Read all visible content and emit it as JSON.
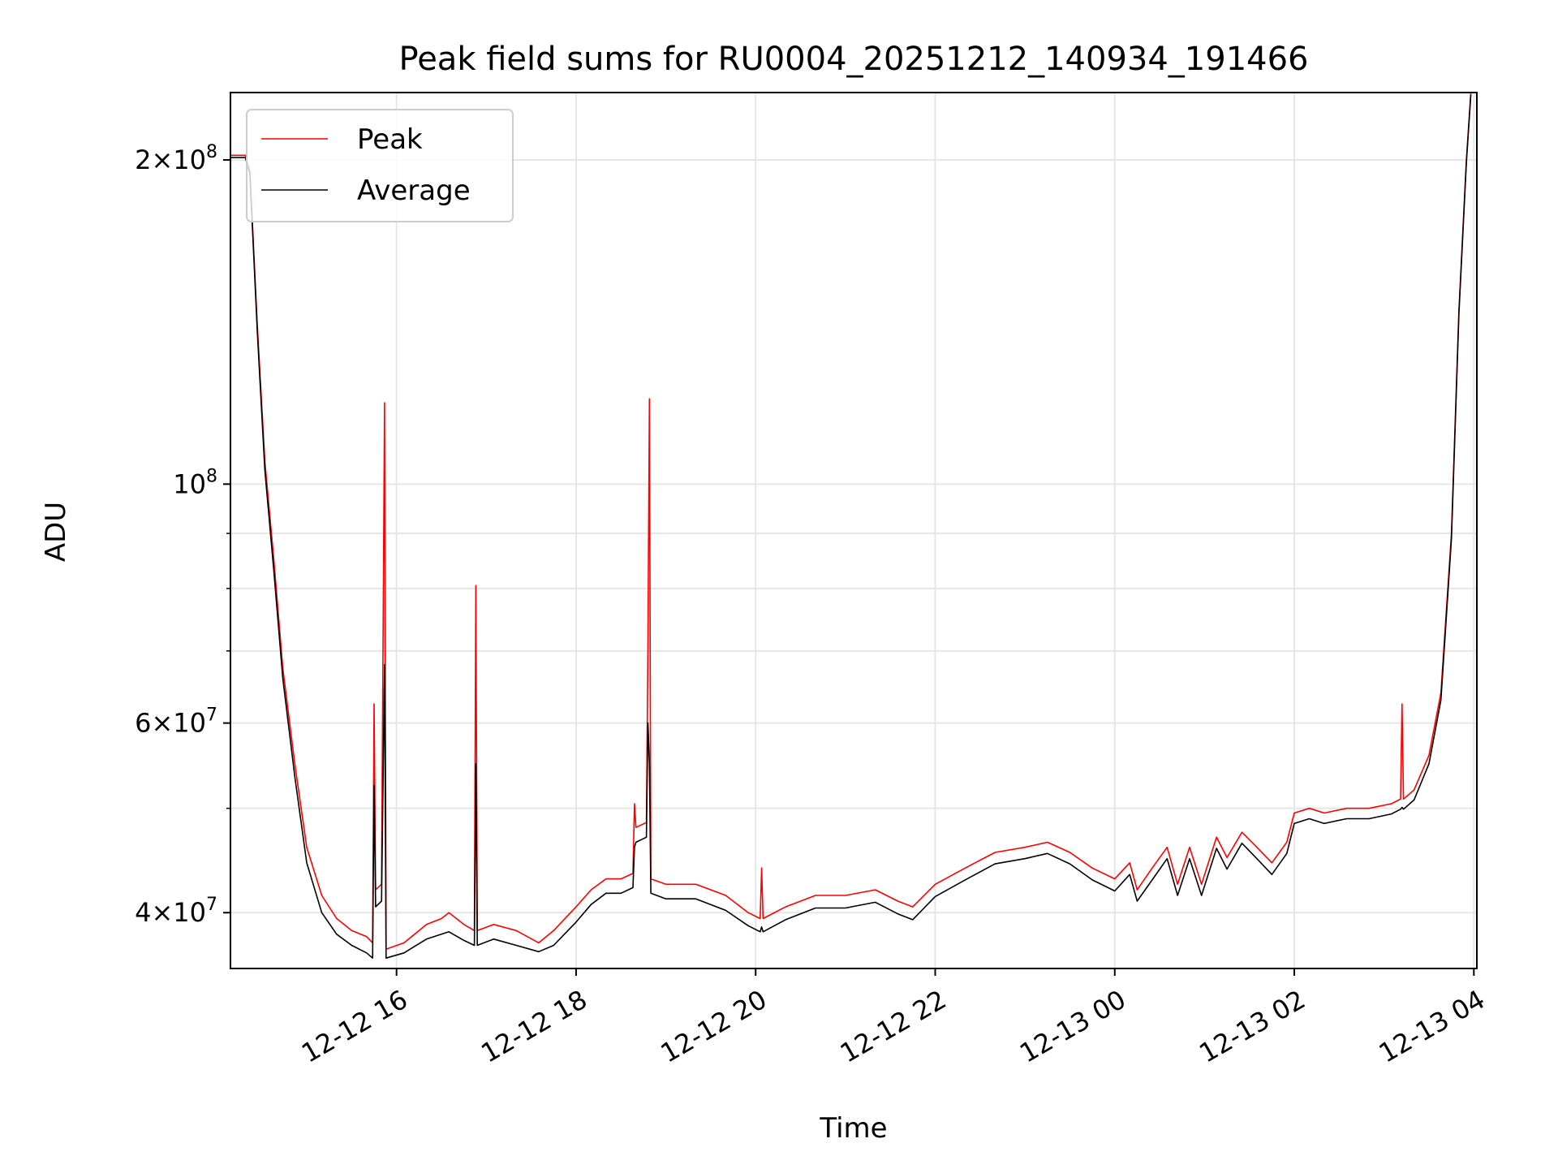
{
  "chart_data": {
    "type": "line",
    "title": "Peak field sums for RU0004_20251212_140934_191466",
    "xlabel": "Time",
    "ylabel": "ADU",
    "yscale": "log",
    "grid": true,
    "legend_position": "top-left",
    "xlim": [
      "2025-12-12 14:09",
      "2025-12-13 04:02"
    ],
    "ylim": [
      35500000,
      231000000
    ],
    "x_ticks": [
      {
        "value": "2025-12-12 16:00",
        "label": "12-12 16"
      },
      {
        "value": "2025-12-12 18:00",
        "label": "12-12 18"
      },
      {
        "value": "2025-12-12 20:00",
        "label": "12-12 20"
      },
      {
        "value": "2025-12-12 22:00",
        "label": "12-12 22"
      },
      {
        "value": "2025-12-13 00:00",
        "label": "12-13 00"
      },
      {
        "value": "2025-12-13 02:00",
        "label": "12-13 02"
      },
      {
        "value": "2025-12-13 04:00",
        "label": "12-13 04"
      }
    ],
    "y_ticks_major": [
      {
        "value": 40000000,
        "base": "4×10",
        "exp": "7"
      },
      {
        "value": 60000000,
        "base": "6×10",
        "exp": "7"
      },
      {
        "value": 100000000,
        "base": "10",
        "exp": "8"
      },
      {
        "value": 200000000,
        "base": "2×10",
        "exp": "8"
      }
    ],
    "y_ticks_minor": [
      50000000,
      70000000,
      80000000,
      90000000
    ],
    "series": [
      {
        "name": "Peak",
        "color": "#ff0000",
        "points": [
          [
            "2025-12-12 14:09",
            202000000
          ],
          [
            "2025-12-12 14:19",
            202000000
          ],
          [
            "2025-12-12 14:22",
            195000000
          ],
          [
            "2025-12-12 14:27",
            140000000
          ],
          [
            "2025-12-12 14:32",
            105000000
          ],
          [
            "2025-12-12 14:38",
            85000000
          ],
          [
            "2025-12-12 14:44",
            67500000
          ],
          [
            "2025-12-12 14:52",
            55000000
          ],
          [
            "2025-12-12 15:00",
            46000000
          ],
          [
            "2025-12-12 15:10",
            41500000
          ],
          [
            "2025-12-12 15:20",
            39500000
          ],
          [
            "2025-12-12 15:30",
            38500000
          ],
          [
            "2025-12-12 15:40",
            38000000
          ],
          [
            "2025-12-12 15:44",
            37500000
          ],
          [
            "2025-12-12 15:45",
            62500000
          ],
          [
            "2025-12-12 15:46",
            42000000
          ],
          [
            "2025-12-12 15:50",
            42500000
          ],
          [
            "2025-12-12 15:52",
            119000000
          ],
          [
            "2025-12-12 15:53",
            37000000
          ],
          [
            "2025-12-12 16:05",
            37500000
          ],
          [
            "2025-12-12 16:20",
            39000000
          ],
          [
            "2025-12-12 16:30",
            39500000
          ],
          [
            "2025-12-12 16:35",
            40000000
          ],
          [
            "2025-12-12 16:45",
            39000000
          ],
          [
            "2025-12-12 16:52",
            38500000
          ],
          [
            "2025-12-12 16:53",
            80500000
          ],
          [
            "2025-12-12 16:54",
            38500000
          ],
          [
            "2025-12-12 17:05",
            39000000
          ],
          [
            "2025-12-12 17:20",
            38500000
          ],
          [
            "2025-12-12 17:35",
            37500000
          ],
          [
            "2025-12-12 17:45",
            38500000
          ],
          [
            "2025-12-12 18:00",
            40500000
          ],
          [
            "2025-12-12 18:10",
            42000000
          ],
          [
            "2025-12-12 18:20",
            43000000
          ],
          [
            "2025-12-12 18:30",
            43000000
          ],
          [
            "2025-12-12 18:38",
            43500000
          ],
          [
            "2025-12-12 18:39",
            50500000
          ],
          [
            "2025-12-12 18:40",
            48000000
          ],
          [
            "2025-12-12 18:47",
            48500000
          ],
          [
            "2025-12-12 18:48",
            71000000
          ],
          [
            "2025-12-12 18:49",
            120000000
          ],
          [
            "2025-12-12 18:50",
            43000000
          ],
          [
            "2025-12-12 19:00",
            42500000
          ],
          [
            "2025-12-12 19:20",
            42500000
          ],
          [
            "2025-12-12 19:40",
            41500000
          ],
          [
            "2025-12-12 19:55",
            40000000
          ],
          [
            "2025-12-12 20:03",
            39500000
          ],
          [
            "2025-12-12 20:04",
            44000000
          ],
          [
            "2025-12-12 20:05",
            39500000
          ],
          [
            "2025-12-12 20:20",
            40500000
          ],
          [
            "2025-12-12 20:40",
            41500000
          ],
          [
            "2025-12-12 21:00",
            41500000
          ],
          [
            "2025-12-12 21:20",
            42000000
          ],
          [
            "2025-12-12 21:35",
            41000000
          ],
          [
            "2025-12-12 21:45",
            40500000
          ],
          [
            "2025-12-12 22:00",
            42500000
          ],
          [
            "2025-12-12 22:20",
            44000000
          ],
          [
            "2025-12-12 22:40",
            45500000
          ],
          [
            "2025-12-12 23:00",
            46000000
          ],
          [
            "2025-12-12 23:15",
            46500000
          ],
          [
            "2025-12-12 23:30",
            45500000
          ],
          [
            "2025-12-12 23:45",
            44000000
          ],
          [
            "2025-12-13 00:00",
            43000000
          ],
          [
            "2025-12-13 00:10",
            44500000
          ],
          [
            "2025-12-13 00:15",
            42000000
          ],
          [
            "2025-12-13 00:25",
            44000000
          ],
          [
            "2025-12-13 00:35",
            46000000
          ],
          [
            "2025-12-13 00:42",
            42500000
          ],
          [
            "2025-12-13 00:50",
            46000000
          ],
          [
            "2025-12-13 00:58",
            42500000
          ],
          [
            "2025-12-13 01:08",
            47000000
          ],
          [
            "2025-12-13 01:15",
            45000000
          ],
          [
            "2025-12-13 01:25",
            47500000
          ],
          [
            "2025-12-13 01:35",
            46000000
          ],
          [
            "2025-12-13 01:45",
            44500000
          ],
          [
            "2025-12-13 01:55",
            46500000
          ],
          [
            "2025-12-13 02:00",
            49500000
          ],
          [
            "2025-12-13 02:10",
            50000000
          ],
          [
            "2025-12-13 02:20",
            49500000
          ],
          [
            "2025-12-13 02:35",
            50000000
          ],
          [
            "2025-12-13 02:50",
            50000000
          ],
          [
            "2025-12-13 03:05",
            50500000
          ],
          [
            "2025-12-13 03:11",
            51000000
          ],
          [
            "2025-12-13 03:12",
            62500000
          ],
          [
            "2025-12-13 03:13",
            51000000
          ],
          [
            "2025-12-13 03:20",
            52000000
          ],
          [
            "2025-12-13 03:30",
            56000000
          ],
          [
            "2025-12-13 03:38",
            64000000
          ],
          [
            "2025-12-13 03:45",
            90000000
          ],
          [
            "2025-12-13 03:50",
            145000000
          ],
          [
            "2025-12-13 03:55",
            200000000
          ],
          [
            "2025-12-13 03:58",
            231000000
          ]
        ]
      },
      {
        "name": "Average",
        "color": "#000000",
        "points": [
          [
            "2025-12-12 14:09",
            201000000
          ],
          [
            "2025-12-12 14:19",
            201000000
          ],
          [
            "2025-12-12 14:22",
            194000000
          ],
          [
            "2025-12-12 14:27",
            138000000
          ],
          [
            "2025-12-12 14:32",
            103000000
          ],
          [
            "2025-12-12 14:38",
            83000000
          ],
          [
            "2025-12-12 14:44",
            66000000
          ],
          [
            "2025-12-12 14:52",
            53500000
          ],
          [
            "2025-12-12 15:00",
            44500000
          ],
          [
            "2025-12-12 15:10",
            40000000
          ],
          [
            "2025-12-12 15:20",
            38200000
          ],
          [
            "2025-12-12 15:30",
            37300000
          ],
          [
            "2025-12-12 15:40",
            36700000
          ],
          [
            "2025-12-12 15:44",
            36300000
          ],
          [
            "2025-12-12 15:45",
            52500000
          ],
          [
            "2025-12-12 15:46",
            40500000
          ],
          [
            "2025-12-12 15:50",
            41000000
          ],
          [
            "2025-12-12 15:52",
            68000000
          ],
          [
            "2025-12-12 15:53",
            36300000
          ],
          [
            "2025-12-12 16:05",
            36700000
          ],
          [
            "2025-12-12 16:20",
            37800000
          ],
          [
            "2025-12-12 16:30",
            38200000
          ],
          [
            "2025-12-12 16:35",
            38400000
          ],
          [
            "2025-12-12 16:45",
            37700000
          ],
          [
            "2025-12-12 16:52",
            37300000
          ],
          [
            "2025-12-12 16:53",
            55000000
          ],
          [
            "2025-12-12 16:54",
            37300000
          ],
          [
            "2025-12-12 17:05",
            37800000
          ],
          [
            "2025-12-12 17:20",
            37300000
          ],
          [
            "2025-12-12 17:35",
            36800000
          ],
          [
            "2025-12-12 17:45",
            37300000
          ],
          [
            "2025-12-12 18:00",
            39200000
          ],
          [
            "2025-12-12 18:10",
            40700000
          ],
          [
            "2025-12-12 18:20",
            41700000
          ],
          [
            "2025-12-12 18:30",
            41700000
          ],
          [
            "2025-12-12 18:38",
            42200000
          ],
          [
            "2025-12-12 18:39",
            46000000
          ],
          [
            "2025-12-12 18:40",
            46500000
          ],
          [
            "2025-12-12 18:47",
            47000000
          ],
          [
            "2025-12-12 18:48",
            60000000
          ],
          [
            "2025-12-12 18:49",
            55000000
          ],
          [
            "2025-12-12 18:50",
            41700000
          ],
          [
            "2025-12-12 19:00",
            41200000
          ],
          [
            "2025-12-12 19:20",
            41200000
          ],
          [
            "2025-12-12 19:40",
            40200000
          ],
          [
            "2025-12-12 19:55",
            38900000
          ],
          [
            "2025-12-12 20:03",
            38400000
          ],
          [
            "2025-12-12 20:04",
            38800000
          ],
          [
            "2025-12-12 20:05",
            38400000
          ],
          [
            "2025-12-12 20:20",
            39400000
          ],
          [
            "2025-12-12 20:40",
            40400000
          ],
          [
            "2025-12-12 21:00",
            40400000
          ],
          [
            "2025-12-12 21:20",
            40900000
          ],
          [
            "2025-12-12 21:35",
            39900000
          ],
          [
            "2025-12-12 21:45",
            39400000
          ],
          [
            "2025-12-12 22:00",
            41400000
          ],
          [
            "2025-12-12 22:20",
            42900000
          ],
          [
            "2025-12-12 22:40",
            44400000
          ],
          [
            "2025-12-12 23:00",
            44900000
          ],
          [
            "2025-12-12 23:15",
            45400000
          ],
          [
            "2025-12-12 23:30",
            44400000
          ],
          [
            "2025-12-12 23:45",
            42900000
          ],
          [
            "2025-12-13 00:00",
            41900000
          ],
          [
            "2025-12-13 00:10",
            43400000
          ],
          [
            "2025-12-13 00:15",
            41000000
          ],
          [
            "2025-12-13 00:25",
            42900000
          ],
          [
            "2025-12-13 00:35",
            44900000
          ],
          [
            "2025-12-13 00:42",
            41500000
          ],
          [
            "2025-12-13 00:50",
            44900000
          ],
          [
            "2025-12-13 00:58",
            41500000
          ],
          [
            "2025-12-13 01:08",
            45900000
          ],
          [
            "2025-12-13 01:15",
            43900000
          ],
          [
            "2025-12-13 01:25",
            46400000
          ],
          [
            "2025-12-13 01:35",
            44900000
          ],
          [
            "2025-12-13 01:45",
            43400000
          ],
          [
            "2025-12-13 01:55",
            45400000
          ],
          [
            "2025-12-13 02:00",
            48400000
          ],
          [
            "2025-12-13 02:10",
            48900000
          ],
          [
            "2025-12-13 02:20",
            48400000
          ],
          [
            "2025-12-13 02:35",
            48900000
          ],
          [
            "2025-12-13 02:50",
            48900000
          ],
          [
            "2025-12-13 03:05",
            49400000
          ],
          [
            "2025-12-13 03:11",
            49900000
          ],
          [
            "2025-12-13 03:12",
            50100000
          ],
          [
            "2025-12-13 03:13",
            49900000
          ],
          [
            "2025-12-13 03:20",
            50900000
          ],
          [
            "2025-12-13 03:30",
            55000000
          ],
          [
            "2025-12-13 03:38",
            63000000
          ],
          [
            "2025-12-13 03:45",
            89000000
          ],
          [
            "2025-12-13 03:50",
            144000000
          ],
          [
            "2025-12-13 03:55",
            199000000
          ],
          [
            "2025-12-13 03:58",
            230000000
          ]
        ]
      }
    ]
  }
}
